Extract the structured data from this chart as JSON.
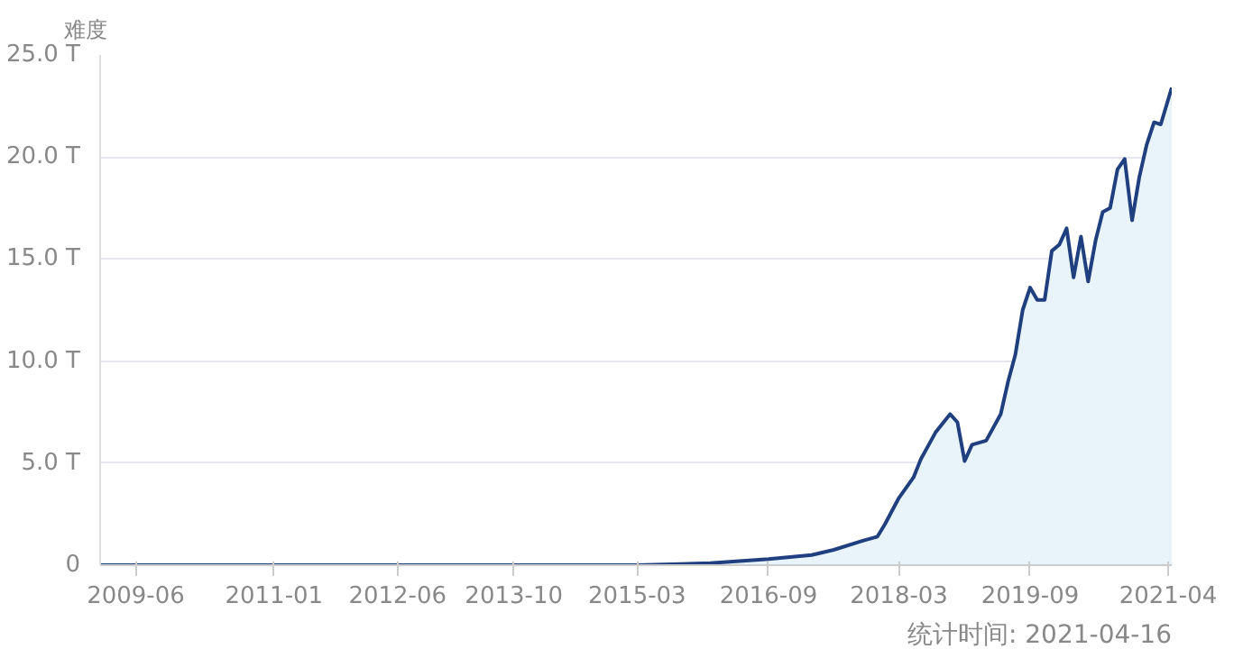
{
  "chart_data": {
    "type": "area",
    "ylabel": "难度",
    "annotations": [
      "统计时间: 2021-04-16"
    ],
    "x": [
      "2009-01-03",
      "2010-06",
      "2011-06",
      "2012-06",
      "2013-06",
      "2014-06",
      "2015-03",
      "2016-01",
      "2016-09",
      "2017-03",
      "2017-06",
      "2017-10",
      "2017-12",
      "2018-01",
      "2018-03",
      "2018-05",
      "2018-06",
      "2018-08",
      "2018-10",
      "2018-11",
      "2018-12",
      "2019-01",
      "2019-03",
      "2019-05",
      "2019-06",
      "2019-07",
      "2019-08",
      "2019-09",
      "2019-10",
      "2019-11",
      "2019-12",
      "2020-01",
      "2020-02",
      "2020-03",
      "2020-04",
      "2020-05",
      "2020-06",
      "2020-07",
      "2020-08",
      "2020-09",
      "2020-10",
      "2020-11",
      "2020-12",
      "2021-01",
      "2021-02",
      "2021-03",
      "2021-04-16"
    ],
    "series": [
      {
        "color": "#1f3f7f",
        "values": [
          0,
          0,
          0,
          0,
          0,
          0,
          0,
          0.1,
          0.3,
          0.5,
          0.75,
          1.2,
          1.4,
          2.0,
          3.3,
          4.3,
          5.2,
          6.5,
          7.4,
          7.0,
          5.1,
          5.9,
          6.1,
          7.4,
          9.0,
          10.3,
          12.5,
          13.6,
          13.0,
          13.0,
          15.4,
          15.7,
          16.5,
          14.1,
          16.1,
          13.9,
          15.9,
          17.3,
          17.5,
          19.4,
          19.9,
          16.9,
          19.0,
          20.6,
          21.7,
          21.6,
          23.4
        ]
      }
    ],
    "xlim": [
      "2009-01-03",
      "2021-04-16"
    ],
    "xticks": [
      "2009-06",
      "2011-01",
      "2012-06",
      "2013-10",
      "2015-03",
      "2016-09",
      "2018-03",
      "2019-09",
      "2021-04"
    ],
    "ylim": [
      0,
      25
    ],
    "yticks": [
      0,
      {
        "value": 5,
        "label": "5.0 T"
      },
      {
        "value": 10,
        "label": "10.0 T"
      },
      {
        "value": 15,
        "label": "15.0 T"
      },
      {
        "value": 20,
        "label": "20.0 T"
      },
      {
        "value": 25,
        "label": "25.0 T"
      }
    ],
    "grid": "y"
  }
}
